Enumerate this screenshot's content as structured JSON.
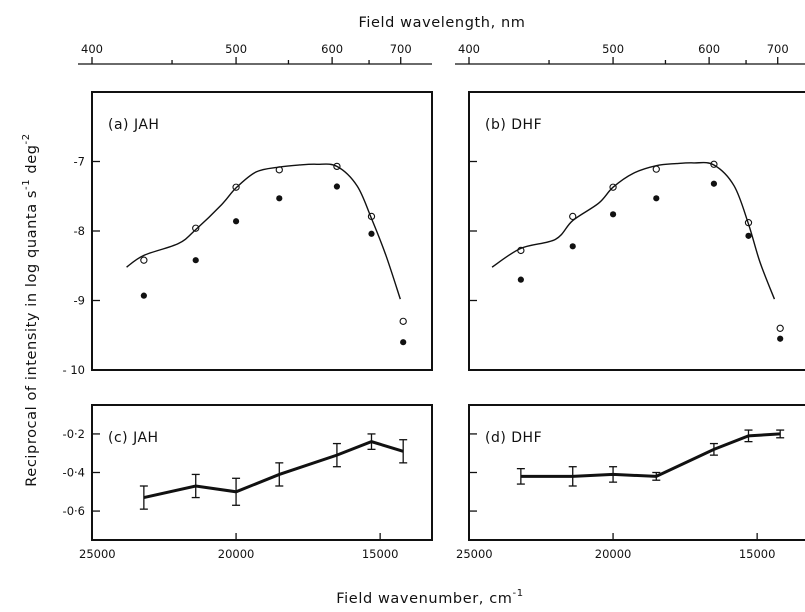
{
  "figure": {
    "top_axis_title": "Field wavelength,  nm",
    "bottom_axis_title": "Field wavenumber, cm",
    "bottom_axis_title_sup": "-1",
    "y_axis_title": "Reciprocal of intensity in log quanta s",
    "y_axis_title_sup1": "-1",
    "y_axis_title_mid": " deg",
    "y_axis_title_sup2": "-2"
  },
  "chart_data": [
    {
      "id": "a",
      "type": "scatter",
      "panel_label": "(a) JAH",
      "x_unit": "wavenumber cm-1",
      "xlim": [
        25000,
        13200
      ],
      "ylim": [
        -10,
        -6
      ],
      "yticks": [
        -10,
        -9,
        -8,
        -7
      ],
      "ytick_labels": [
        "- 10",
        "-9",
        "-8",
        "-7"
      ],
      "top_ticks": [
        400,
        500,
        600,
        700
      ],
      "top_tick_labels": [
        "400",
        "500",
        "600",
        "700"
      ],
      "minor_top_ticks": [
        450,
        550,
        650
      ],
      "series": [
        {
          "marker": "open",
          "x": [
            23200,
            21400,
            20000,
            18500,
            16500,
            15300,
            14200
          ],
          "y": [
            -8.42,
            -7.96,
            -7.37,
            -7.12,
            -7.07,
            -7.79,
            -9.3
          ]
        },
        {
          "marker": "filled",
          "x": [
            23200,
            21400,
            20000,
            18500,
            16500,
            15300,
            14200
          ],
          "y": [
            -8.93,
            -8.42,
            -7.86,
            -7.53,
            -7.36,
            -8.04,
            -9.6
          ]
        },
        {
          "marker": "line",
          "x": [
            23800,
            23200,
            22000,
            21400,
            20500,
            20000,
            19300,
            18500,
            17800,
            17200,
            16500,
            15800,
            15300,
            14800,
            14300
          ],
          "y": [
            -8.52,
            -8.35,
            -8.18,
            -7.98,
            -7.62,
            -7.38,
            -7.15,
            -7.08,
            -7.05,
            -7.04,
            -7.07,
            -7.35,
            -7.82,
            -8.35,
            -8.98
          ]
        }
      ]
    },
    {
      "id": "b",
      "type": "scatter",
      "panel_label": "(b) DHF",
      "x_unit": "wavenumber cm-1",
      "xlim": [
        25000,
        13200
      ],
      "ylim": [
        -10,
        -6
      ],
      "yticks": [
        -10,
        -9,
        -8,
        -7
      ],
      "top_ticks": [
        400,
        500,
        600,
        700
      ],
      "top_tick_labels": [
        "400",
        "500",
        "600",
        "700"
      ],
      "minor_top_ticks": [
        450,
        550,
        650
      ],
      "series": [
        {
          "marker": "open",
          "x": [
            23200,
            21400,
            20000,
            18500,
            16500,
            15300,
            14200
          ],
          "y": [
            -8.28,
            -7.79,
            -7.37,
            -7.11,
            -7.04,
            -7.88,
            -9.4
          ]
        },
        {
          "marker": "filled",
          "x": [
            23200,
            21400,
            20000,
            18500,
            16500,
            15300,
            14200
          ],
          "y": [
            -8.7,
            -8.22,
            -7.76,
            -7.53,
            -7.32,
            -8.07,
            -9.55
          ]
        },
        {
          "marker": "line",
          "x": [
            24200,
            23200,
            22000,
            21400,
            20500,
            20000,
            19300,
            18500,
            17800,
            17200,
            16500,
            15800,
            15300,
            14900,
            14400
          ],
          "y": [
            -8.52,
            -8.25,
            -8.12,
            -7.85,
            -7.6,
            -7.37,
            -7.17,
            -7.06,
            -7.03,
            -7.02,
            -7.05,
            -7.35,
            -7.9,
            -8.45,
            -8.98
          ]
        }
      ]
    },
    {
      "id": "c",
      "type": "line",
      "panel_label": "(c) JAH",
      "x_unit": "wavenumber cm-1",
      "xlim": [
        25000,
        13200
      ],
      "ylim": [
        -0.75,
        -0.05
      ],
      "yticks": [
        -0.6,
        -0.4,
        -0.2
      ],
      "ytick_labels": [
        "-0·6",
        "-0·4",
        "-0·2"
      ],
      "xticks": [
        25000,
        20000,
        15000
      ],
      "xtick_labels": [
        "25000",
        "20000",
        "15000"
      ],
      "series": [
        {
          "x": [
            23200,
            21400,
            20000,
            18500,
            16500,
            15300,
            14200
          ],
          "y": [
            -0.53,
            -0.47,
            -0.5,
            -0.41,
            -0.31,
            -0.24,
            -0.29
          ],
          "err": [
            0.06,
            0.06,
            0.07,
            0.06,
            0.06,
            0.04,
            0.06
          ]
        }
      ]
    },
    {
      "id": "d",
      "type": "line",
      "panel_label": "(d) DHF",
      "x_unit": "wavenumber cm-1",
      "xlim": [
        25000,
        13200
      ],
      "ylim": [
        -0.75,
        -0.05
      ],
      "yticks": [
        -0.6,
        -0.4,
        -0.2
      ],
      "xticks": [
        25000,
        20000,
        15000
      ],
      "xtick_labels": [
        "25000",
        "20000",
        "15000"
      ],
      "series": [
        {
          "x": [
            23200,
            21400,
            20000,
            18500,
            16500,
            15300,
            14200
          ],
          "y": [
            -0.42,
            -0.42,
            -0.41,
            -0.42,
            -0.28,
            -0.21,
            -0.2
          ],
          "err": [
            0.04,
            0.05,
            0.04,
            0.02,
            0.03,
            0.03,
            0.02
          ]
        }
      ]
    }
  ]
}
